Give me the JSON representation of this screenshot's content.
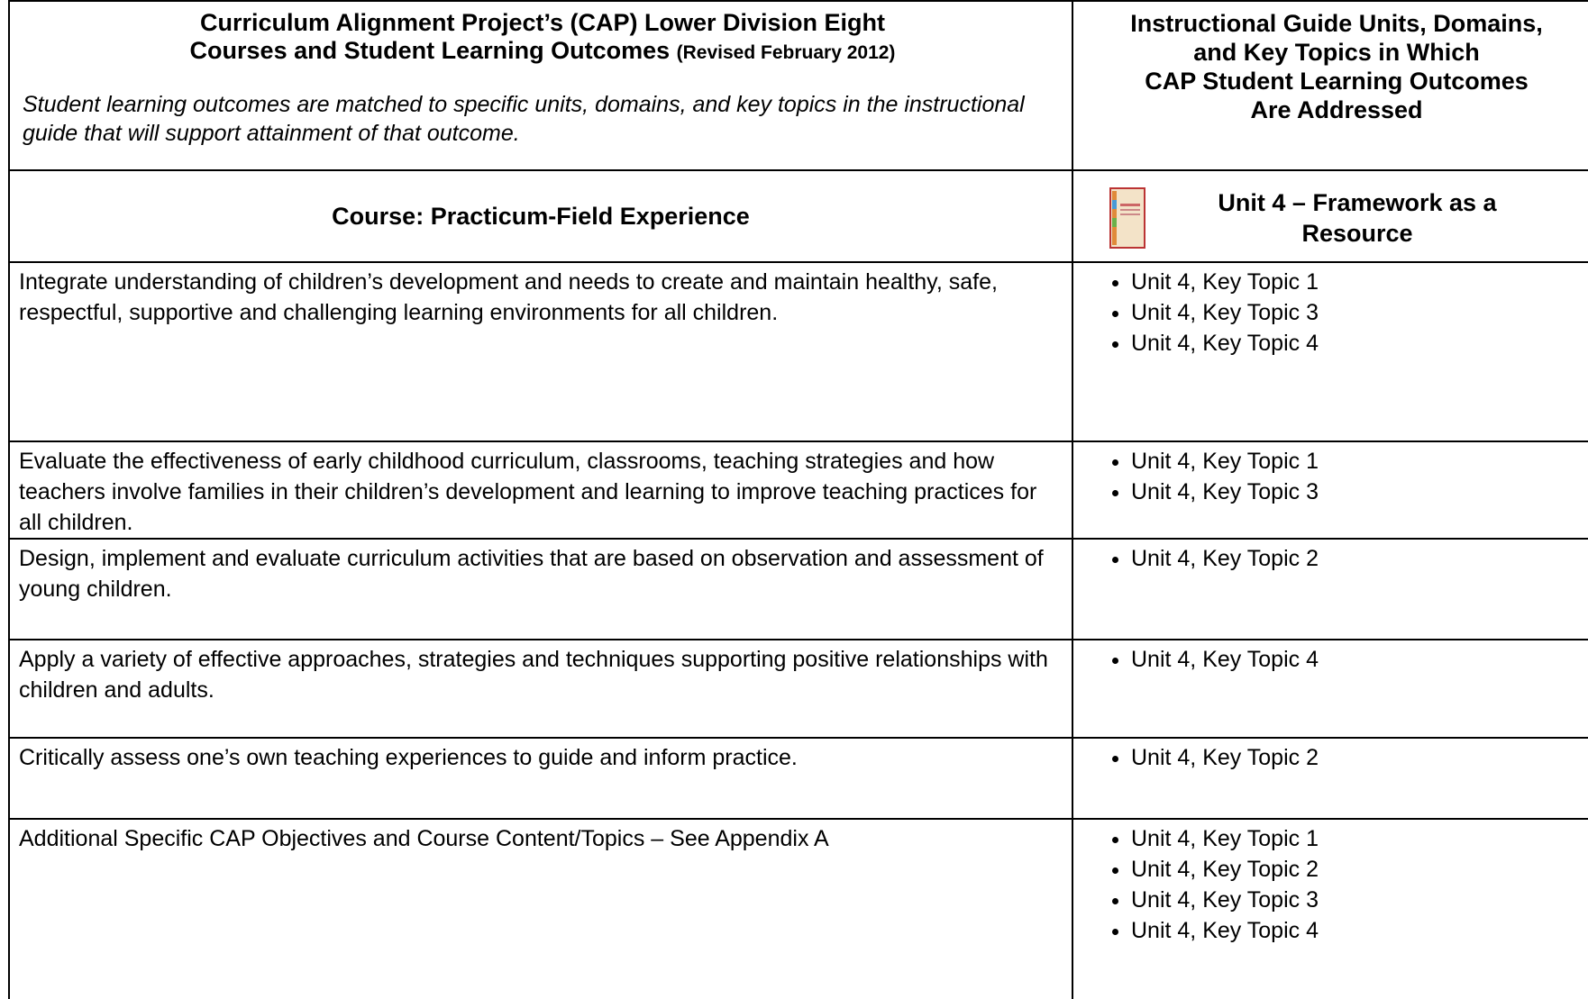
{
  "header": {
    "title_lines": [
      "Curriculum Alignment Project’s (CAP) Lower Division Eight",
      "Courses and Student Learning Outcomes"
    ],
    "revised_note": "(Revised February 2012)",
    "subtitle": "Student learning outcomes are matched to specific units, domains, and key topics in the instructional guide that will support attainment of that outcome.",
    "right_title_lines": [
      "Instructional Guide Units, Domains,",
      "and Key Topics in Which",
      "CAP Student Learning Outcomes",
      "Are Addressed"
    ]
  },
  "course": {
    "name": "Course:  Practicum-Field Experience",
    "unit": "Unit 4 – Framework as a Resource"
  },
  "rows": [
    {
      "outcome": "Integrate understanding of children’s development and needs to create and maintain healthy, safe, respectful, supportive and challenging learning environments for all children.",
      "topics": [
        "Unit 4, Key Topic 1",
        "Unit 4, Key Topic 3",
        "Unit 4, Key Topic 4"
      ]
    },
    {
      "outcome": "Evaluate the effectiveness of early childhood curriculum, classrooms, teaching strategies and how teachers involve families in their children’s development and learning to improve teaching practices for all children.",
      "topics": [
        "Unit 4, Key Topic 1",
        "Unit 4, Key Topic 3"
      ]
    },
    {
      "outcome": "Design, implement and evaluate curriculum activities that are based on observation and assessment of young children.",
      "topics": [
        "Unit 4, Key Topic 2"
      ]
    },
    {
      "outcome": "Apply a variety of effective approaches, strategies and techniques supporting positive relationships with children and adults.",
      "topics": [
        "Unit 4, Key Topic 4"
      ]
    },
    {
      "outcome": "Critically assess one’s own teaching experiences to guide and inform practice.",
      "topics": [
        "Unit 4, Key Topic 2"
      ]
    },
    {
      "outcome": "Additional Specific CAP Objectives and Course Content/Topics – See Appendix A",
      "topics": [
        "Unit 4, Key Topic 1",
        "Unit 4, Key Topic 2",
        "Unit 4, Key Topic 3",
        "Unit 4, Key Topic 4"
      ]
    }
  ]
}
